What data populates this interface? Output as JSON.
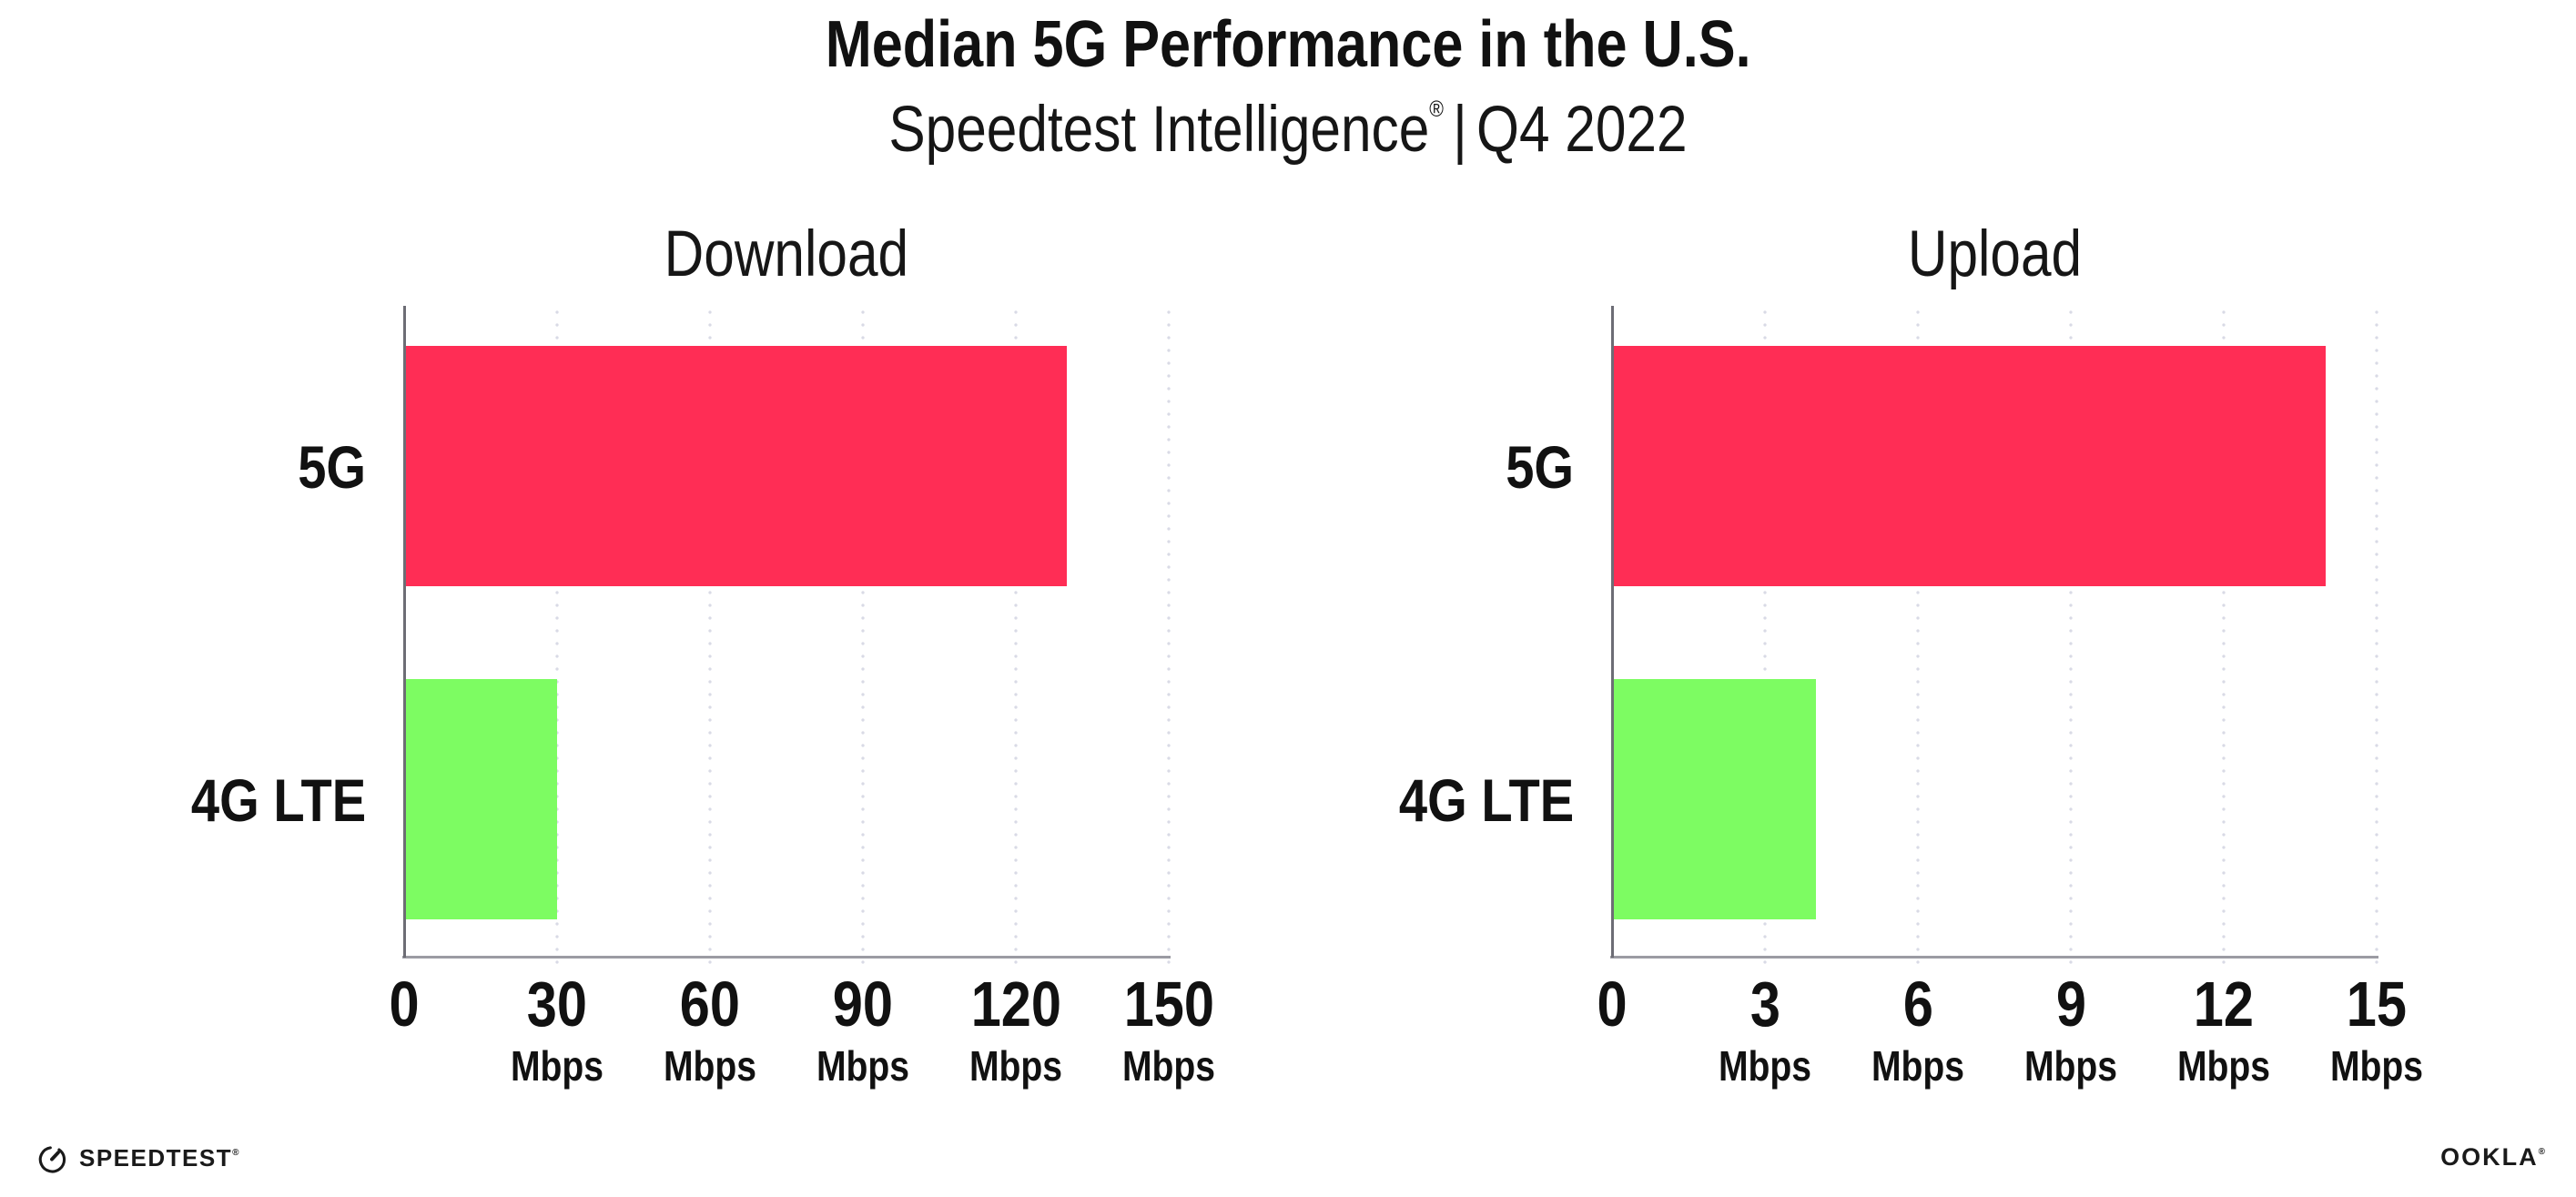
{
  "header": {
    "title": "Median 5G Performance in the U.S.",
    "subtitle": {
      "brand": "Speedtest Intelligence",
      "registered": "®",
      "separator": "|",
      "period": "Q4 2022"
    }
  },
  "chart_data": [
    {
      "type": "bar",
      "orientation": "horizontal",
      "title": "Download",
      "categories": [
        "5G",
        "4G LTE"
      ],
      "values": [
        130,
        30
      ],
      "unit": "Mbps",
      "xlim": [
        0,
        150
      ],
      "xticks": [
        0,
        30,
        60,
        90,
        120,
        150
      ],
      "tick_labels": [
        "0",
        "30",
        "60",
        "90",
        "120",
        "150"
      ],
      "bar_colors": [
        "#ff2d55",
        "#7dfc62"
      ],
      "grid": "dotted-vertical",
      "legend": "none"
    },
    {
      "type": "bar",
      "orientation": "horizontal",
      "title": "Upload",
      "categories": [
        "5G",
        "4G LTE"
      ],
      "values": [
        14,
        4
      ],
      "unit": "Mbps",
      "xlim": [
        0,
        15
      ],
      "xticks": [
        0,
        3,
        6,
        9,
        12,
        15
      ],
      "tick_labels": [
        "0",
        "3",
        "6",
        "9",
        "12",
        "15"
      ],
      "bar_colors": [
        "#ff2d55",
        "#7dfc62"
      ],
      "grid": "dotted-vertical",
      "legend": "none"
    }
  ],
  "footer": {
    "speedtest": "SPEEDTEST",
    "speedtest_mark": "®",
    "ookla": "OOKLA",
    "ookla_mark": "®"
  },
  "colors": {
    "bar_5g": "#ff2d55",
    "bar_4g_lte": "#7dfc62",
    "gridline": "#d9dae6",
    "x_axis": "#9b9ba3",
    "y_axis": "#6d6d75",
    "text": "#111111",
    "background": "#ffffff"
  }
}
